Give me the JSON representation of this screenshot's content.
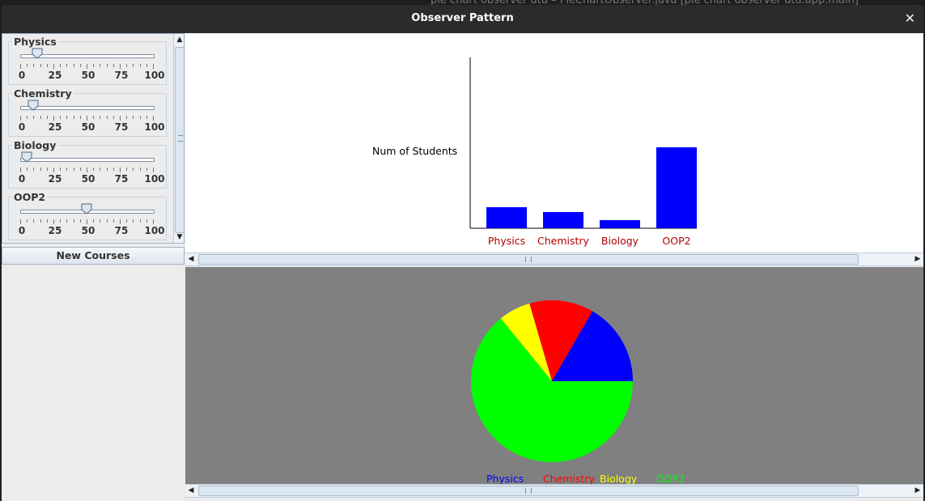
{
  "background_window_title": "pie chart observer utu – PieChartObserver.java [pie chart observer utu.app.main]",
  "window": {
    "title": "Observer Pattern"
  },
  "courses": [
    {
      "name": "Physics",
      "value": 13
    },
    {
      "name": "Chemistry",
      "value": 10
    },
    {
      "name": "Biology",
      "value": 5
    },
    {
      "name": "OOP2",
      "value": 50
    }
  ],
  "slider_scale": [
    "0",
    "25",
    "50",
    "75",
    "100"
  ],
  "new_courses_label": "New Courses",
  "colors": {
    "Physics": "#0000ff",
    "Chemistry": "#ff0000",
    "Biology": "#ffff00",
    "OOP2": "#00ff00",
    "bar": "#0000ff",
    "bar_label": "#b00000",
    "pie_background": "#808080"
  },
  "chart_data": [
    {
      "type": "bar",
      "ylabel": "Num of Students",
      "categories": [
        "Physics",
        "Chemistry",
        "Biology",
        "OOP2"
      ],
      "values": [
        13,
        10,
        5,
        50
      ]
    },
    {
      "type": "pie",
      "labels": [
        "Physics",
        "Chemistry",
        "Biology",
        "OOP2"
      ],
      "values": [
        13,
        10,
        5,
        50
      ]
    }
  ]
}
